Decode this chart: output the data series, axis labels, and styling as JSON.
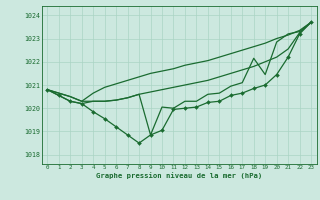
{
  "hours": [
    0,
    1,
    2,
    3,
    4,
    5,
    6,
    7,
    8,
    9,
    10,
    11,
    12,
    13,
    14,
    15,
    16,
    17,
    18,
    19,
    20,
    21,
    22,
    23
  ],
  "line_top": [
    1020.8,
    1020.65,
    1020.5,
    1020.3,
    1020.65,
    1020.9,
    1021.05,
    1021.2,
    1021.35,
    1021.5,
    1021.6,
    1021.7,
    1021.85,
    1021.95,
    1022.05,
    1022.2,
    1022.35,
    1022.5,
    1022.65,
    1022.8,
    1023.0,
    1023.15,
    1023.35,
    1023.7
  ],
  "line_mid": [
    1020.8,
    1020.65,
    1020.5,
    1020.3,
    1020.3,
    1020.3,
    1020.35,
    1020.45,
    1020.6,
    1020.7,
    1020.8,
    1020.9,
    1021.0,
    1021.1,
    1021.2,
    1021.35,
    1021.5,
    1021.65,
    1021.8,
    1022.0,
    1022.2,
    1022.55,
    1023.25,
    1023.7
  ],
  "line_bottom": [
    1020.8,
    1020.55,
    1020.3,
    1020.2,
    1019.85,
    1019.55,
    1019.2,
    1018.85,
    1018.5,
    1018.85,
    1019.05,
    1019.95,
    1020.0,
    1020.05,
    1020.25,
    1020.3,
    1020.55,
    1020.65,
    1020.85,
    1021.0,
    1021.45,
    1022.2,
    1023.2,
    1023.7
  ],
  "line_extra": [
    1020.8,
    1020.55,
    1020.3,
    1020.2,
    1020.3,
    1020.3,
    1020.35,
    1020.45,
    1020.6,
    1018.85,
    1020.05,
    1020.0,
    1020.3,
    1020.3,
    1020.6,
    1020.65,
    1020.95,
    1021.1,
    1022.15,
    1021.45,
    1022.85,
    1023.2,
    1023.3,
    1023.7
  ],
  "bg_color": "#cce8df",
  "grid_color": "#aad4c4",
  "line_color": "#1a6b30",
  "ylabel_values": [
    1018,
    1019,
    1020,
    1021,
    1022,
    1023,
    1024
  ],
  "xlabel": "Graphe pression niveau de la mer (hPa)",
  "ylim": [
    1017.6,
    1024.4
  ],
  "xlim": [
    -0.5,
    23.5
  ]
}
